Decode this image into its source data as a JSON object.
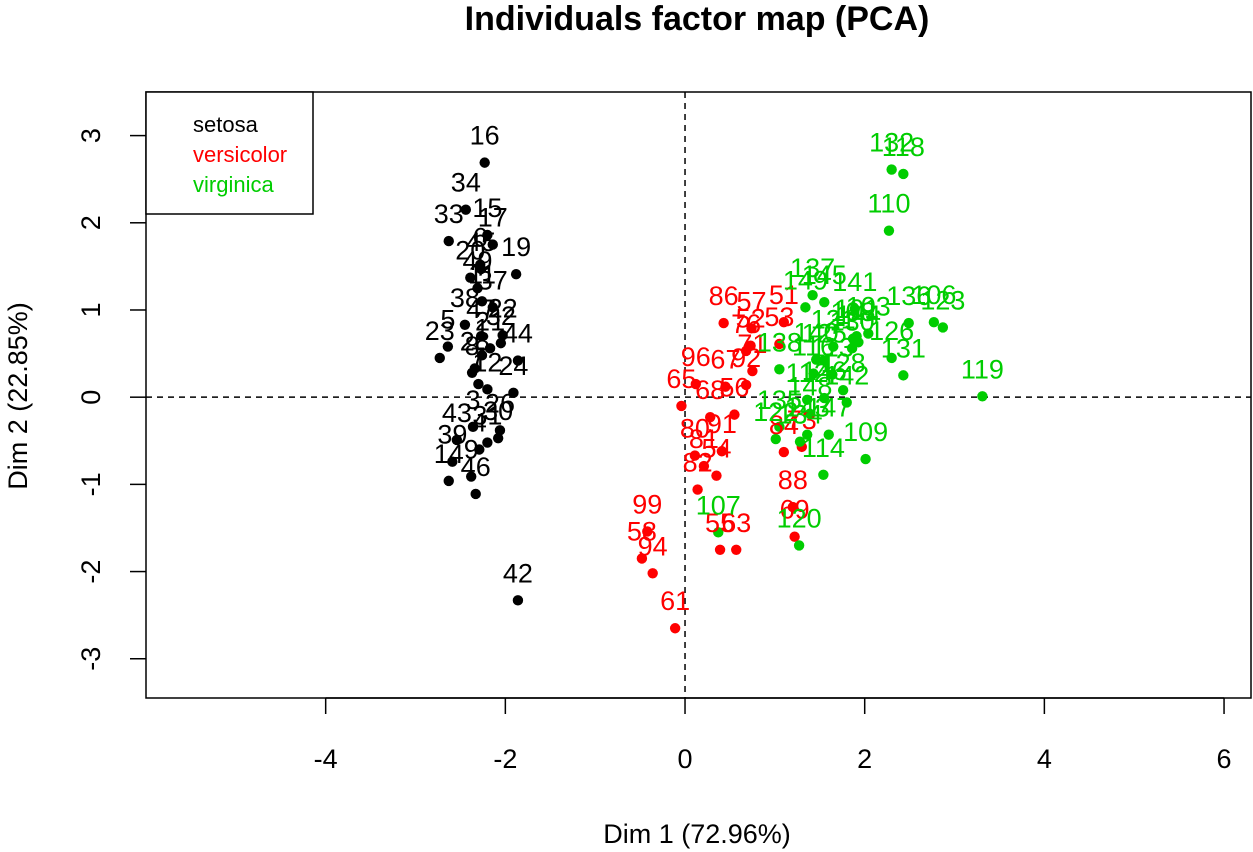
{
  "chart_data": {
    "type": "scatter",
    "title": "Individuals factor map (PCA)",
    "xlabel": "Dim 1 (72.96%)",
    "ylabel": "Dim 2 (22.85%)",
    "xlim": [
      -6,
      6.3
    ],
    "ylim": [
      -3.45,
      3.5
    ],
    "xticks": [
      -4,
      -2,
      0,
      2,
      4,
      6
    ],
    "yticks": [
      -3,
      -2,
      -1,
      0,
      1,
      2,
      3
    ],
    "grid": false,
    "reference_lines": {
      "x": 0,
      "y": 0,
      "style": "dashed"
    },
    "legend": {
      "position": "top-left",
      "entries": [
        {
          "name": "setosa",
          "color": "#000000"
        },
        {
          "name": "versicolor",
          "color": "#ff0000"
        },
        {
          "name": "virginica",
          "color": "#00cd00"
        }
      ]
    },
    "series": [
      {
        "name": "setosa",
        "color": "#000000",
        "points": [
          {
            "label": "16",
            "x": -2.23,
            "y": 2.69
          },
          {
            "label": "34",
            "x": -2.44,
            "y": 2.15
          },
          {
            "label": "15",
            "x": -2.2,
            "y": 1.86
          },
          {
            "label": "33",
            "x": -2.63,
            "y": 1.79
          },
          {
            "label": "17",
            "x": -2.14,
            "y": 1.75
          },
          {
            "label": "19",
            "x": -1.88,
            "y": 1.41
          },
          {
            "label": "6",
            "x": -2.28,
            "y": 1.52
          },
          {
            "label": "20",
            "x": -2.39,
            "y": 1.37
          },
          {
            "label": "45",
            "x": -2.27,
            "y": 1.47
          },
          {
            "label": "49",
            "x": -2.31,
            "y": 1.25
          },
          {
            "label": "11",
            "x": -2.26,
            "y": 1.1
          },
          {
            "label": "38",
            "x": -2.45,
            "y": 0.83
          },
          {
            "label": "37",
            "x": -2.14,
            "y": 1.03
          },
          {
            "label": "23",
            "x": -2.73,
            "y": 0.45
          },
          {
            "label": "47",
            "x": -2.27,
            "y": 0.7
          },
          {
            "label": "22",
            "x": -2.03,
            "y": 0.71
          },
          {
            "label": "32",
            "x": -2.05,
            "y": 0.62
          },
          {
            "label": "1",
            "x": -2.26,
            "y": 0.48
          },
          {
            "label": "5",
            "x": -2.64,
            "y": 0.58
          },
          {
            "label": "21",
            "x": -2.17,
            "y": 0.56
          },
          {
            "label": "44",
            "x": -1.86,
            "y": 0.42
          },
          {
            "label": "24",
            "x": -1.91,
            "y": 0.05
          },
          {
            "label": "7",
            "x": -2.3,
            "y": 0.15
          },
          {
            "label": "8",
            "x": -2.37,
            "y": 0.28
          },
          {
            "label": "28",
            "x": -2.34,
            "y": 0.33
          },
          {
            "label": "12",
            "x": -2.2,
            "y": 0.09
          },
          {
            "label": "43",
            "x": -2.54,
            "y": -0.49
          },
          {
            "label": "3",
            "x": -2.36,
            "y": -0.34
          },
          {
            "label": "4",
            "x": -2.29,
            "y": -0.6
          },
          {
            "label": "30",
            "x": -2.08,
            "y": -0.47
          },
          {
            "label": "31",
            "x": -2.2,
            "y": -0.52
          },
          {
            "label": "26",
            "x": -2.06,
            "y": -0.38
          },
          {
            "label": "14",
            "x": -2.63,
            "y": -0.96
          },
          {
            "label": "9",
            "x": -2.38,
            "y": -0.91
          },
          {
            "label": "39",
            "x": -2.59,
            "y": -0.74
          },
          {
            "label": "46",
            "x": -2.33,
            "y": -1.11
          },
          {
            "label": "42",
            "x": -1.86,
            "y": -2.33
          }
        ]
      },
      {
        "name": "versicolor",
        "color": "#ff0000",
        "points": [
          {
            "label": "86",
            "x": 0.43,
            "y": 0.85
          },
          {
            "label": "57",
            "x": 0.74,
            "y": 0.79
          },
          {
            "label": "51",
            "x": 1.1,
            "y": 0.86
          },
          {
            "label": "53",
            "x": 1.05,
            "y": 0.61
          },
          {
            "label": "52",
            "x": 0.73,
            "y": 0.59
          },
          {
            "label": "76",
            "x": 0.68,
            "y": 0.53
          },
          {
            "label": "71",
            "x": 0.75,
            "y": 0.3
          },
          {
            "label": "92",
            "x": 0.68,
            "y": 0.14
          },
          {
            "label": "96",
            "x": 0.12,
            "y": 0.15
          },
          {
            "label": "67",
            "x": 0.45,
            "y": 0.12
          },
          {
            "label": "68",
            "x": 0.28,
            "y": -0.23
          },
          {
            "label": "65",
            "x": -0.04,
            "y": -0.1
          },
          {
            "label": "56",
            "x": 0.55,
            "y": -0.2
          },
          {
            "label": "80",
            "x": 0.11,
            "y": -0.67
          },
          {
            "label": "81",
            "x": 0.21,
            "y": -0.79
          },
          {
            "label": "91",
            "x": 0.41,
            "y": -0.62
          },
          {
            "label": "54",
            "x": 0.35,
            "y": -0.9
          },
          {
            "label": "99",
            "x": -0.42,
            "y": -1.54
          },
          {
            "label": "82",
            "x": 0.14,
            "y": -1.06
          },
          {
            "label": "58",
            "x": -0.48,
            "y": -1.85
          },
          {
            "label": "94",
            "x": -0.36,
            "y": -2.02
          },
          {
            "label": "63",
            "x": 0.57,
            "y": -1.75
          },
          {
            "label": "55",
            "x": 0.39,
            "y": -1.75
          },
          {
            "label": "88",
            "x": 1.2,
            "y": -1.26
          },
          {
            "label": "69",
            "x": 1.22,
            "y": -1.6
          },
          {
            "label": "61",
            "x": -0.11,
            "y": -2.65
          },
          {
            "label": "84",
            "x": 1.1,
            "y": -0.63
          },
          {
            "label": "73",
            "x": 1.3,
            "y": -0.57
          }
        ]
      },
      {
        "name": "virginica",
        "color": "#00cd00",
        "points": [
          {
            "label": "132",
            "x": 2.3,
            "y": 2.61
          },
          {
            "label": "118",
            "x": 2.43,
            "y": 2.56
          },
          {
            "label": "110",
            "x": 2.27,
            "y": 1.91
          },
          {
            "label": "145",
            "x": 1.55,
            "y": 1.09
          },
          {
            "label": "137",
            "x": 1.42,
            "y": 1.17
          },
          {
            "label": "149",
            "x": 1.34,
            "y": 1.03
          },
          {
            "label": "141",
            "x": 1.89,
            "y": 1.01
          },
          {
            "label": "136",
            "x": 2.49,
            "y": 0.85
          },
          {
            "label": "106",
            "x": 2.77,
            "y": 0.86
          },
          {
            "label": "103",
            "x": 2.04,
            "y": 0.73
          },
          {
            "label": "123",
            "x": 2.87,
            "y": 0.8
          },
          {
            "label": "108",
            "x": 1.87,
            "y": 0.67
          },
          {
            "label": "131",
            "x": 2.43,
            "y": 0.25
          },
          {
            "label": "119",
            "x": 3.31,
            "y": 0.01
          },
          {
            "label": "126",
            "x": 2.3,
            "y": 0.45
          },
          {
            "label": "101",
            "x": 1.91,
            "y": 0.7
          },
          {
            "label": "121",
            "x": 1.65,
            "y": 0.58
          },
          {
            "label": "144",
            "x": 1.93,
            "y": 0.63
          },
          {
            "label": "125",
            "x": 1.55,
            "y": 0.42
          },
          {
            "label": "130",
            "x": 1.86,
            "y": 0.56
          },
          {
            "label": "140",
            "x": 1.46,
            "y": 0.43
          },
          {
            "label": "113",
            "x": 1.64,
            "y": 0.26
          },
          {
            "label": "138",
            "x": 1.05,
            "y": 0.32
          },
          {
            "label": "128",
            "x": 1.76,
            "y": 0.08
          },
          {
            "label": "116",
            "x": 1.43,
            "y": 0.27
          },
          {
            "label": "142",
            "x": 1.8,
            "y": -0.06
          },
          {
            "label": "146",
            "x": 1.55,
            "y": -0.01
          },
          {
            "label": "112",
            "x": 1.36,
            "y": -0.03
          },
          {
            "label": "148",
            "x": 1.39,
            "y": -0.19
          },
          {
            "label": "109",
            "x": 2.01,
            "y": -0.71
          },
          {
            "label": "147",
            "x": 1.6,
            "y": -0.43
          },
          {
            "label": "143",
            "x": 1.36,
            "y": -0.43
          },
          {
            "label": "135",
            "x": 1.05,
            "y": -0.34
          },
          {
            "label": "134",
            "x": 1.28,
            "y": -0.51
          },
          {
            "label": "114",
            "x": 1.54,
            "y": -0.89
          },
          {
            "label": "122",
            "x": 1.01,
            "y": -0.48
          },
          {
            "label": "107",
            "x": 0.37,
            "y": -1.55
          },
          {
            "label": "120",
            "x": 1.27,
            "y": -1.7
          }
        ]
      }
    ]
  }
}
